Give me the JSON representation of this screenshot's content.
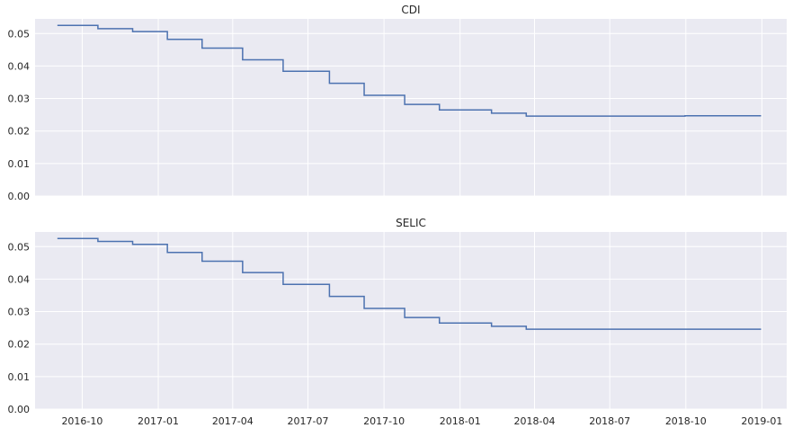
{
  "chart_data": [
    {
      "type": "line",
      "title": "CDI",
      "xlabel": "",
      "ylabel": "",
      "ylim": [
        0,
        0.0545
      ],
      "xlim": [
        "2016-08-05",
        "2019-01-31"
      ],
      "yticks": [
        "0.00",
        "0.01",
        "0.02",
        "0.03",
        "0.04",
        "0.05"
      ],
      "xticks": [
        "2016-10",
        "2017-01",
        "2017-04",
        "2017-07",
        "2017-10",
        "2018-01",
        "2018-04",
        "2018-07",
        "2018-10",
        "2019-01"
      ],
      "grid": true,
      "line_color": "#4c72b0",
      "background_color": "#eaeaf2",
      "series": [
        {
          "step": "post",
          "x": [
            "2016-09-01",
            "2016-10-20",
            "2016-12-01",
            "2017-01-12",
            "2017-02-23",
            "2017-04-13",
            "2017-06-01",
            "2017-07-27",
            "2017-09-07",
            "2017-10-26",
            "2017-12-07",
            "2018-02-08",
            "2018-03-22",
            "2018-09-30",
            "2018-12-31"
          ],
          "y": [
            0.0525,
            0.0515,
            0.0506,
            0.0482,
            0.0455,
            0.0419,
            0.0384,
            0.0347,
            0.031,
            0.0282,
            0.0265,
            0.0255,
            0.0246,
            0.0247,
            0.0247
          ]
        }
      ]
    },
    {
      "type": "line",
      "title": "SELIC",
      "xlabel": "",
      "ylabel": "",
      "ylim": [
        0,
        0.0545
      ],
      "xlim": [
        "2016-08-05",
        "2019-01-31"
      ],
      "yticks": [
        "0.00",
        "0.01",
        "0.02",
        "0.03",
        "0.04",
        "0.05"
      ],
      "xticks": [
        "2016-10",
        "2017-01",
        "2017-04",
        "2017-07",
        "2017-10",
        "2018-01",
        "2018-04",
        "2018-07",
        "2018-10",
        "2019-01"
      ],
      "grid": true,
      "line_color": "#4c72b0",
      "background_color": "#eaeaf2",
      "series": [
        {
          "step": "post",
          "x": [
            "2016-09-01",
            "2016-10-20",
            "2016-12-01",
            "2017-01-12",
            "2017-02-23",
            "2017-04-13",
            "2017-06-01",
            "2017-07-27",
            "2017-09-07",
            "2017-10-26",
            "2017-12-07",
            "2018-02-08",
            "2018-03-22",
            "2018-12-31"
          ],
          "y": [
            0.0525,
            0.0516,
            0.0507,
            0.0482,
            0.0455,
            0.042,
            0.0384,
            0.0347,
            0.031,
            0.0282,
            0.0265,
            0.0255,
            0.0246,
            0.0246
          ]
        }
      ]
    }
  ]
}
